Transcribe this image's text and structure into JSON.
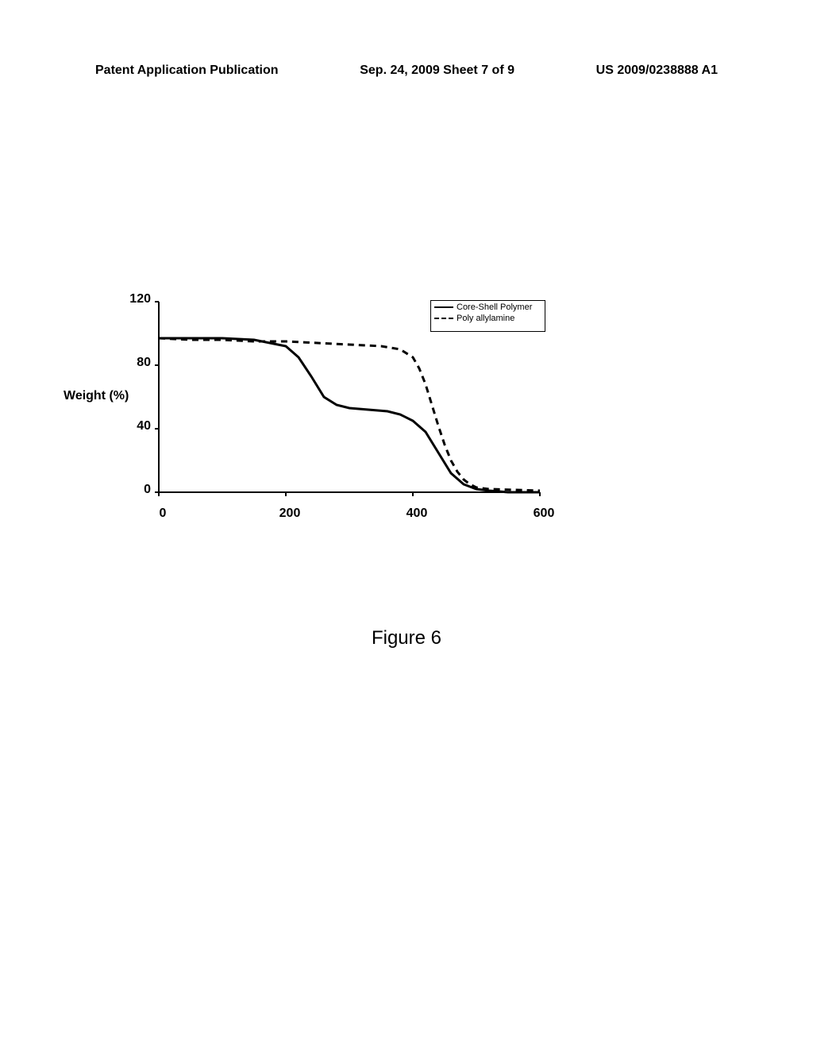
{
  "header": {
    "left": "Patent Application Publication",
    "center": "Sep. 24, 2009  Sheet 7 of 9",
    "right": "US 2009/0238888 A1"
  },
  "chart": {
    "type": "line",
    "ylabel": "Weight (%)",
    "ylim": [
      0,
      120
    ],
    "ytick_step": 40,
    "yticks": [
      "0",
      "40",
      "80",
      "120"
    ],
    "xlim": [
      0,
      600
    ],
    "xtick_step": 200,
    "xticks": [
      "0",
      "200",
      "400",
      "600"
    ],
    "background_color": "#ffffff",
    "axis_color": "#000000",
    "line_width": 2.5,
    "series": [
      {
        "name": "Core-Shell Polymer",
        "style": "solid",
        "color": "#000000",
        "points": [
          [
            0,
            97
          ],
          [
            50,
            97
          ],
          [
            100,
            97
          ],
          [
            150,
            96
          ],
          [
            200,
            92
          ],
          [
            220,
            85
          ],
          [
            240,
            73
          ],
          [
            260,
            60
          ],
          [
            280,
            55
          ],
          [
            300,
            53
          ],
          [
            330,
            52
          ],
          [
            360,
            51
          ],
          [
            380,
            49
          ],
          [
            400,
            45
          ],
          [
            420,
            38
          ],
          [
            440,
            25
          ],
          [
            460,
            12
          ],
          [
            480,
            5
          ],
          [
            500,
            2
          ],
          [
            520,
            1
          ],
          [
            550,
            0
          ],
          [
            600,
            0
          ]
        ]
      },
      {
        "name": "Poly allylamine",
        "style": "dashed",
        "color": "#000000",
        "points": [
          [
            0,
            97
          ],
          [
            50,
            96
          ],
          [
            100,
            96
          ],
          [
            150,
            95
          ],
          [
            200,
            95
          ],
          [
            250,
            94
          ],
          [
            300,
            93
          ],
          [
            350,
            92
          ],
          [
            380,
            90
          ],
          [
            400,
            85
          ],
          [
            410,
            78
          ],
          [
            420,
            68
          ],
          [
            430,
            55
          ],
          [
            440,
            42
          ],
          [
            450,
            30
          ],
          [
            460,
            20
          ],
          [
            470,
            13
          ],
          [
            480,
            8
          ],
          [
            490,
            5
          ],
          [
            500,
            3
          ],
          [
            520,
            2
          ],
          [
            600,
            1
          ]
        ]
      }
    ],
    "legend": {
      "items": [
        "Core-Shell Polymer",
        "Poly allylamine"
      ]
    }
  },
  "figure_caption": "Figure 6"
}
